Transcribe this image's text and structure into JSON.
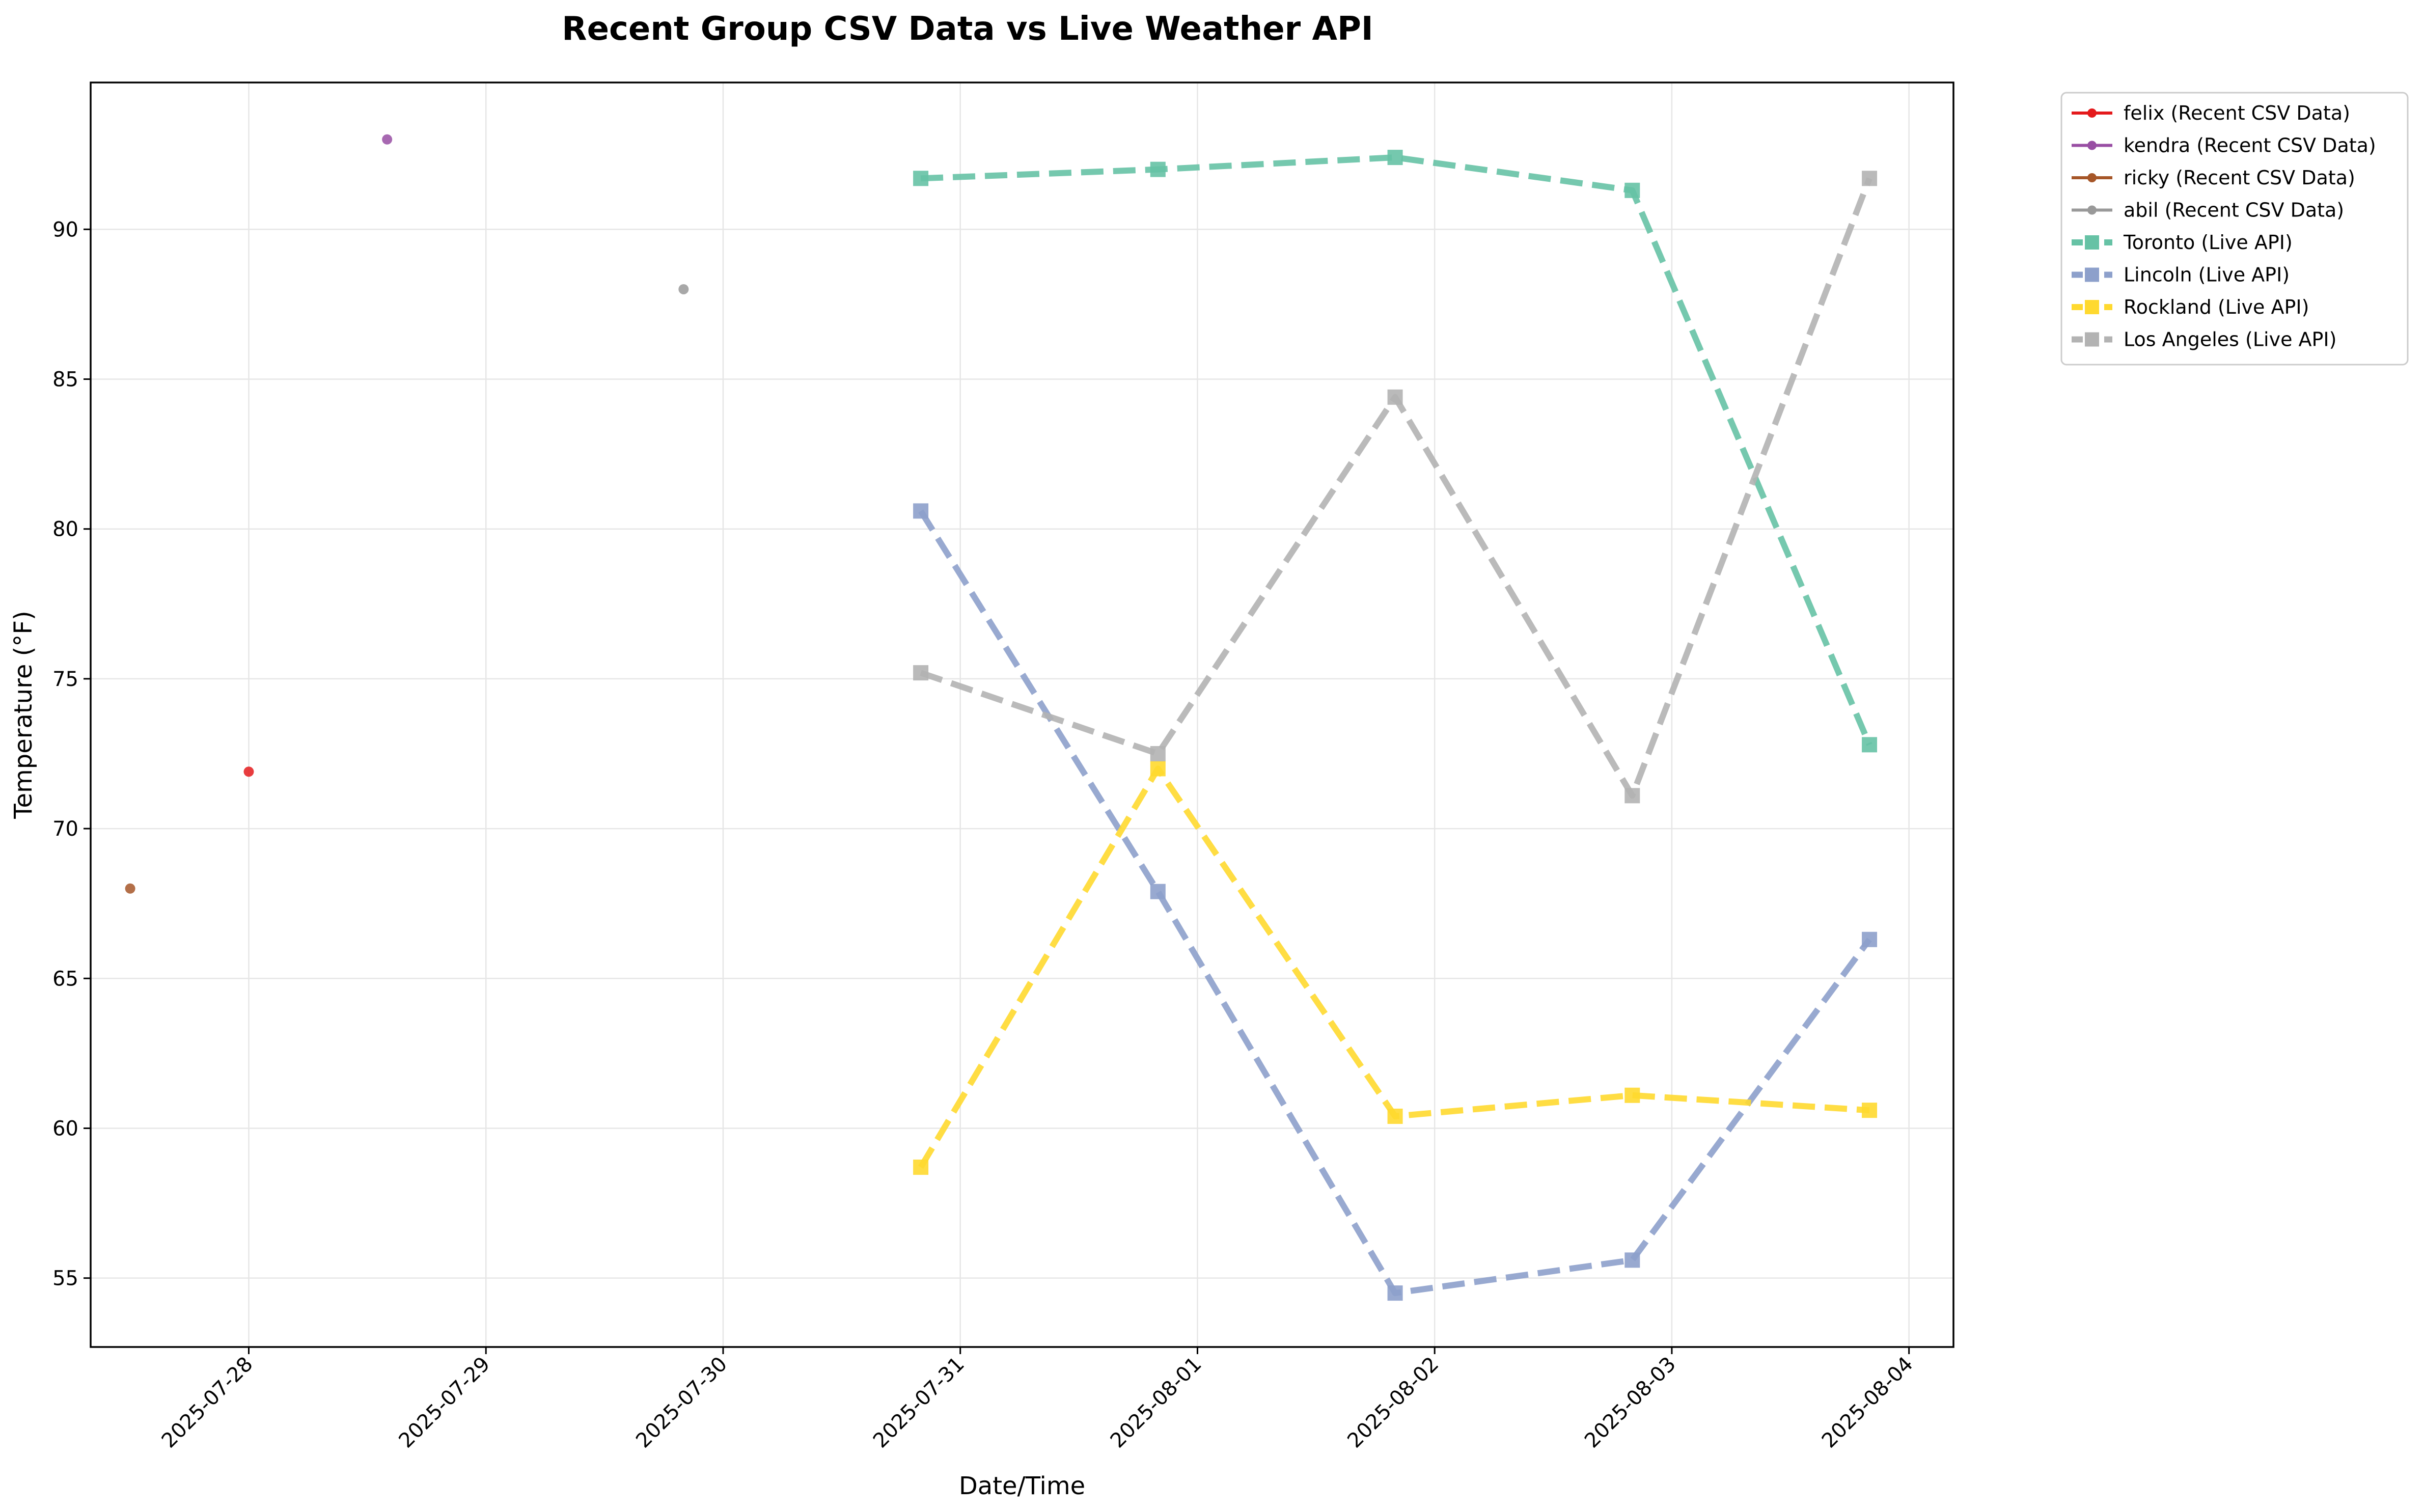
{
  "chart_data": {
    "type": "line",
    "title": "Recent Group CSV Data vs Live Weather API",
    "xlabel": "Date/Time",
    "ylabel": "Temperature (°F)",
    "x_type": "datetime",
    "xlim": [
      "2025-07-27 08:00",
      "2025-08-04 04:30"
    ],
    "ylim": [
      52.7,
      94.9
    ],
    "grid": true,
    "legend_position": "outside-top-right",
    "x_ticks": [
      "2025-07-28",
      "2025-07-29",
      "2025-07-30",
      "2025-07-31",
      "2025-08-01",
      "2025-08-02",
      "2025-08-03",
      "2025-08-04"
    ],
    "y_ticks": [
      55,
      60,
      65,
      70,
      75,
      80,
      85,
      90
    ],
    "series": [
      {
        "name": "felix (Recent CSV Data)",
        "color": "#e41a1c",
        "style": "solid",
        "marker": "circle",
        "x": [
          "2025-07-28 00:00"
        ],
        "y": [
          71.9
        ]
      },
      {
        "name": "kendra (Recent CSV Data)",
        "color": "#984ea3",
        "style": "solid",
        "marker": "circle",
        "x": [
          "2025-07-28 14:00"
        ],
        "y": [
          93.0
        ]
      },
      {
        "name": "ricky (Recent CSV Data)",
        "color": "#a65628",
        "style": "solid",
        "marker": "circle",
        "x": [
          "2025-07-27 12:00"
        ],
        "y": [
          68.0
        ]
      },
      {
        "name": "abil (Recent CSV Data)",
        "color": "#999999",
        "style": "solid",
        "marker": "circle",
        "x": [
          "2025-07-29 20:00"
        ],
        "y": [
          88.0
        ]
      },
      {
        "name": "Toronto (Live API)",
        "color": "#66c2a5",
        "style": "dashed",
        "marker": "square",
        "x": [
          "2025-07-30 20:00",
          "2025-07-31 20:00",
          "2025-08-01 20:00",
          "2025-08-02 20:00",
          "2025-08-03 20:00"
        ],
        "y": [
          91.7,
          92.0,
          92.4,
          91.3,
          72.8
        ]
      },
      {
        "name": "Lincoln (Live API)",
        "color": "#8da0cb",
        "style": "dashed",
        "marker": "square",
        "x": [
          "2025-07-30 20:00",
          "2025-07-31 20:00",
          "2025-08-01 20:00",
          "2025-08-02 20:00",
          "2025-08-03 20:00"
        ],
        "y": [
          80.6,
          67.9,
          54.5,
          55.6,
          66.3
        ]
      },
      {
        "name": "Rockland (Live API)",
        "color": "#ffd92f",
        "style": "dashed",
        "marker": "square",
        "x": [
          "2025-07-30 20:00",
          "2025-07-31 20:00",
          "2025-08-01 20:00",
          "2025-08-02 20:00",
          "2025-08-03 20:00"
        ],
        "y": [
          58.7,
          72.0,
          60.4,
          61.1,
          60.6
        ]
      },
      {
        "name": "Los Angeles (Live API)",
        "color": "#b3b3b3",
        "style": "dashed",
        "marker": "square",
        "x": [
          "2025-07-30 20:00",
          "2025-07-31 20:00",
          "2025-08-01 20:00",
          "2025-08-02 20:00",
          "2025-08-03 20:00"
        ],
        "y": [
          75.2,
          72.5,
          84.4,
          71.1,
          91.7
        ]
      }
    ]
  }
}
